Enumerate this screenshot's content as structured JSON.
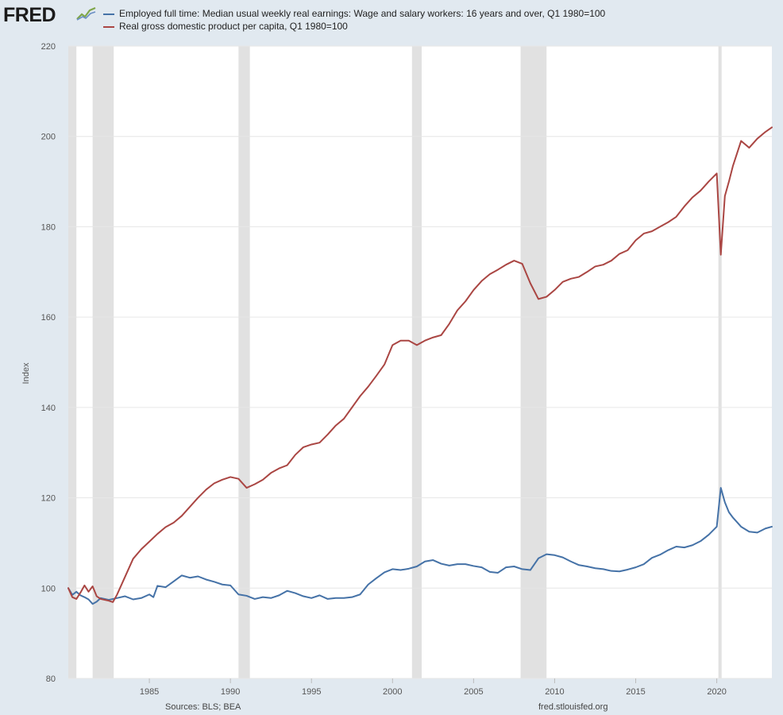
{
  "brand": {
    "logo_text": "FRED"
  },
  "footer": {
    "sources": "Sources: BLS; BEA",
    "site": "fred.stlouisfed.org"
  },
  "colors": {
    "earnings": "#4572a7",
    "gdp": "#aa4643",
    "recession": "#e1e1e1",
    "grid": "#e6e6e6",
    "background": "#e1e9f0"
  },
  "chart_data": {
    "type": "line",
    "title": "",
    "ylabel": "Index",
    "xlabel": "",
    "xlim": [
      1980.0,
      2023.4
    ],
    "ylim": [
      80,
      220
    ],
    "yticks": [
      80,
      100,
      120,
      140,
      160,
      180,
      200,
      220
    ],
    "ytick_labels": [
      "80",
      "100",
      "120",
      "140",
      "160",
      "180",
      "200",
      "220"
    ],
    "xticks": [
      1985,
      1990,
      1995,
      2000,
      2005,
      2010,
      2015,
      2020
    ],
    "xtick_labels": [
      "1985",
      "1990",
      "1995",
      "2000",
      "2005",
      "2010",
      "2015",
      "2020"
    ],
    "recessions": [
      [
        1980.0,
        1980.5
      ],
      [
        1981.5,
        1982.8
      ],
      [
        1990.5,
        1991.2
      ],
      [
        2001.2,
        2001.8
      ],
      [
        2007.9,
        2009.5
      ],
      [
        2020.1,
        2020.3
      ]
    ],
    "series": [
      {
        "name": "Employed full time: Median usual weekly real earnings: Wage and salary workers: 16 years and over, Q1 1980=100",
        "color": "#4572a7",
        "x": [
          1980.0,
          1980.25,
          1980.5,
          1980.75,
          1981.0,
          1981.25,
          1981.5,
          1981.75,
          1982.0,
          1982.5,
          1983.0,
          1983.5,
          1984.0,
          1984.5,
          1985.0,
          1985.25,
          1985.5,
          1986.0,
          1986.5,
          1987.0,
          1987.5,
          1988.0,
          1988.5,
          1989.0,
          1989.5,
          1990.0,
          1990.5,
          1991.0,
          1991.5,
          1992.0,
          1992.5,
          1993.0,
          1993.5,
          1994.0,
          1994.5,
          1995.0,
          1995.5,
          1996.0,
          1996.5,
          1997.0,
          1997.5,
          1998.0,
          1998.5,
          1999.0,
          1999.5,
          2000.0,
          2000.5,
          2001.0,
          2001.5,
          2002.0,
          2002.5,
          2003.0,
          2003.5,
          2004.0,
          2004.5,
          2005.0,
          2005.5,
          2006.0,
          2006.5,
          2007.0,
          2007.5,
          2008.0,
          2008.5,
          2009.0,
          2009.5,
          2010.0,
          2010.5,
          2011.0,
          2011.5,
          2012.0,
          2012.5,
          2013.0,
          2013.5,
          2014.0,
          2014.5,
          2015.0,
          2015.5,
          2016.0,
          2016.5,
          2017.0,
          2017.5,
          2018.0,
          2018.5,
          2019.0,
          2019.5,
          2020.0,
          2020.25,
          2020.5,
          2020.75,
          2021.0,
          2021.5,
          2022.0,
          2022.5,
          2023.0,
          2023.4
        ],
        "values": [
          100,
          98.5,
          99.2,
          98.4,
          98.0,
          97.5,
          96.5,
          97.0,
          97.8,
          97.4,
          97.8,
          98.2,
          97.5,
          97.8,
          98.6,
          98.0,
          100.5,
          100.2,
          101.5,
          102.8,
          102.3,
          102.6,
          101.9,
          101.4,
          100.8,
          100.6,
          98.6,
          98.3,
          97.6,
          98.0,
          97.8,
          98.4,
          99.4,
          98.9,
          98.2,
          97.8,
          98.4,
          97.6,
          97.8,
          97.8,
          98.0,
          98.6,
          100.8,
          102.2,
          103.5,
          104.2,
          104.0,
          104.3,
          104.8,
          105.9,
          106.2,
          105.4,
          105.0,
          105.3,
          105.3,
          104.9,
          104.6,
          103.6,
          103.4,
          104.6,
          104.8,
          104.2,
          104.0,
          106.6,
          107.5,
          107.3,
          106.8,
          105.9,
          105.1,
          104.8,
          104.4,
          104.2,
          103.8,
          103.7,
          104.1,
          104.6,
          105.3,
          106.7,
          107.4,
          108.4,
          109.2,
          109.0,
          109.5,
          110.4,
          111.8,
          113.6,
          122.2,
          119.0,
          116.8,
          115.6,
          113.6,
          112.5,
          112.3,
          113.2,
          113.6
        ]
      },
      {
        "name": "Real gross domestic product per capita, Q1 1980=100",
        "color": "#aa4643",
        "x": [
          1980.0,
          1980.25,
          1980.5,
          1980.75,
          1981.0,
          1981.25,
          1981.5,
          1981.75,
          1982.0,
          1982.5,
          1982.75,
          1983.0,
          1983.5,
          1984.0,
          1984.5,
          1985.0,
          1985.5,
          1986.0,
          1986.5,
          1987.0,
          1987.5,
          1988.0,
          1988.5,
          1989.0,
          1989.5,
          1990.0,
          1990.5,
          1991.0,
          1991.5,
          1992.0,
          1992.5,
          1993.0,
          1993.5,
          1994.0,
          1994.5,
          1995.0,
          1995.5,
          1996.0,
          1996.5,
          1997.0,
          1997.5,
          1998.0,
          1998.5,
          1999.0,
          1999.5,
          2000.0,
          2000.5,
          2001.0,
          2001.5,
          2002.0,
          2002.5,
          2003.0,
          2003.5,
          2004.0,
          2004.5,
          2005.0,
          2005.5,
          2006.0,
          2006.5,
          2007.0,
          2007.5,
          2008.0,
          2008.5,
          2009.0,
          2009.5,
          2010.0,
          2010.5,
          2011.0,
          2011.5,
          2012.0,
          2012.5,
          2013.0,
          2013.5,
          2014.0,
          2014.5,
          2015.0,
          2015.5,
          2016.0,
          2016.5,
          2017.0,
          2017.5,
          2018.0,
          2018.5,
          2019.0,
          2019.5,
          2020.0,
          2020.25,
          2020.5,
          2020.75,
          2021.0,
          2021.5,
          2022.0,
          2022.5,
          2023.0,
          2023.4
        ],
        "values": [
          100,
          98.0,
          97.6,
          99.0,
          100.6,
          99.2,
          100.4,
          98.2,
          97.6,
          97.2,
          96.9,
          98.5,
          102.5,
          106.5,
          108.6,
          110.3,
          112.0,
          113.5,
          114.5,
          116.0,
          118.0,
          120.0,
          121.8,
          123.2,
          124.0,
          124.6,
          124.2,
          122.2,
          123.0,
          124.0,
          125.5,
          126.5,
          127.2,
          129.5,
          131.2,
          131.8,
          132.2,
          134.0,
          136.0,
          137.5,
          140.0,
          142.5,
          144.6,
          147.0,
          149.5,
          153.8,
          154.8,
          154.8,
          153.8,
          154.8,
          155.5,
          156.0,
          158.5,
          161.5,
          163.5,
          166.0,
          168.0,
          169.5,
          170.5,
          171.6,
          172.5,
          171.8,
          167.5,
          164.0,
          164.5,
          166.0,
          167.8,
          168.5,
          168.9,
          170.0,
          171.2,
          171.6,
          172.5,
          174.0,
          174.8,
          177.0,
          178.5,
          179.0,
          180.0,
          181.0,
          182.2,
          184.5,
          186.5,
          188.0,
          190.0,
          191.8,
          173.8,
          186.8,
          190.0,
          193.5,
          199.0,
          197.5,
          199.5,
          201.0,
          202.0
        ]
      }
    ]
  }
}
